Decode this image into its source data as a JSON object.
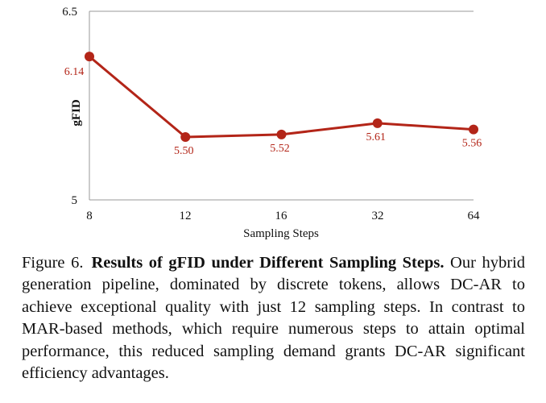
{
  "chart_data": {
    "type": "line",
    "title": "",
    "xlabel": "Sampling Steps",
    "ylabel": "gFID",
    "categories": [
      "8",
      "12",
      "16",
      "32",
      "64"
    ],
    "yticks": [
      "5",
      "6.5"
    ],
    "ylim": [
      5,
      6.5
    ],
    "series": [
      {
        "name": "gFID",
        "values": [
          6.14,
          5.5,
          5.52,
          5.61,
          5.56
        ],
        "labels": [
          "6.14",
          "5.50",
          "5.52",
          "5.61",
          "5.56"
        ],
        "color": "#b32518"
      }
    ],
    "grid": false,
    "legend": "none",
    "axis_color": "#999999",
    "label_color": "#b32518"
  },
  "caption": {
    "number": "Figure 6.",
    "title": "Results of gFID under Different Sampling Steps.",
    "body": "Our hybrid generation pipeline, dominated by discrete tokens, allows DC-AR to achieve exceptional quality with just 12 sampling steps. In contrast to MAR-based methods, which require numerous steps to attain optimal performance, this reduced sampling demand grants DC-AR significant efficiency advantages."
  }
}
